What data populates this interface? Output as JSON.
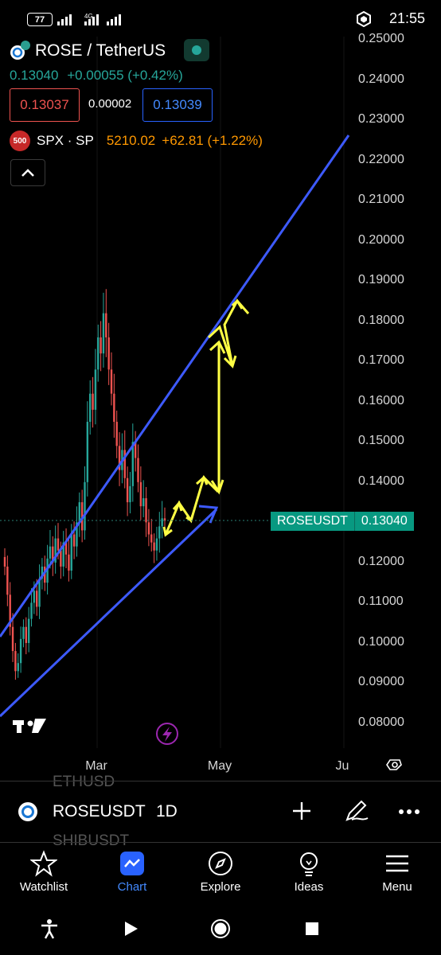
{
  "status_bar": {
    "battery": "77",
    "network": "4G",
    "time": "21:55"
  },
  "header": {
    "title": "ROSE / TetherUS",
    "last_price": "0.13040",
    "change": "+0.00055 (+0.42%)",
    "bid": "0.13037",
    "spread": "0.00002",
    "ask": "0.13039"
  },
  "comparison": {
    "badge": "500",
    "symbol": "SPX · SP",
    "price": "5210.02",
    "change": "+62.81 (+1.22%)"
  },
  "chart_data": {
    "type": "candlestick",
    "symbol": "ROSEUSDT",
    "timeframe": "1D",
    "y_axis_ticks": [
      "0.25000",
      "0.24000",
      "0.23000",
      "0.22000",
      "0.21000",
      "0.20000",
      "0.19000",
      "0.18000",
      "0.17000",
      "0.16000",
      "0.15000",
      "0.14000",
      "0.13000",
      "0.12000",
      "0.11000",
      "0.10000",
      "0.09000",
      "0.08000"
    ],
    "y_range": [
      0.076,
      0.254
    ],
    "x_axis_ticks": [
      "Mar",
      "May",
      "Ju"
    ],
    "current_price_label": "ROSEUSDT",
    "current_price": "0.13040",
    "colors": {
      "up": "#26a69a",
      "down": "#ef5350",
      "trendline": "#3d5afe",
      "drawing": "#ffff44"
    },
    "closes": [
      0.119,
      0.112,
      0.104,
      0.098,
      0.093,
      0.095,
      0.101,
      0.104,
      0.1,
      0.106,
      0.11,
      0.113,
      0.109,
      0.116,
      0.119,
      0.115,
      0.121,
      0.124,
      0.12,
      0.126,
      0.123,
      0.119,
      0.125,
      0.122,
      0.118,
      0.127,
      0.124,
      0.13,
      0.135,
      0.128,
      0.14,
      0.155,
      0.162,
      0.158,
      0.168,
      0.176,
      0.172,
      0.182,
      0.176,
      0.168,
      0.162,
      0.155,
      0.149,
      0.143,
      0.148,
      0.141,
      0.135,
      0.139,
      0.15,
      0.146,
      0.14,
      0.134,
      0.136,
      0.13,
      0.127,
      0.125,
      0.123,
      0.126,
      0.129,
      0.131,
      0.1304
    ]
  },
  "symbol_bar": {
    "symbol": "ROSEUSDT",
    "interval": "1D",
    "ghost_above": "ETHUSD",
    "ghost_below": "SHIBUSDT"
  },
  "bottom_nav": [
    {
      "label": "Watchlist",
      "icon": "star-icon"
    },
    {
      "label": "Chart",
      "icon": "chart-icon"
    },
    {
      "label": "Explore",
      "icon": "compass-icon"
    },
    {
      "label": "Ideas",
      "icon": "lightbulb-icon"
    },
    {
      "label": "Menu",
      "icon": "hamburger-icon"
    }
  ]
}
